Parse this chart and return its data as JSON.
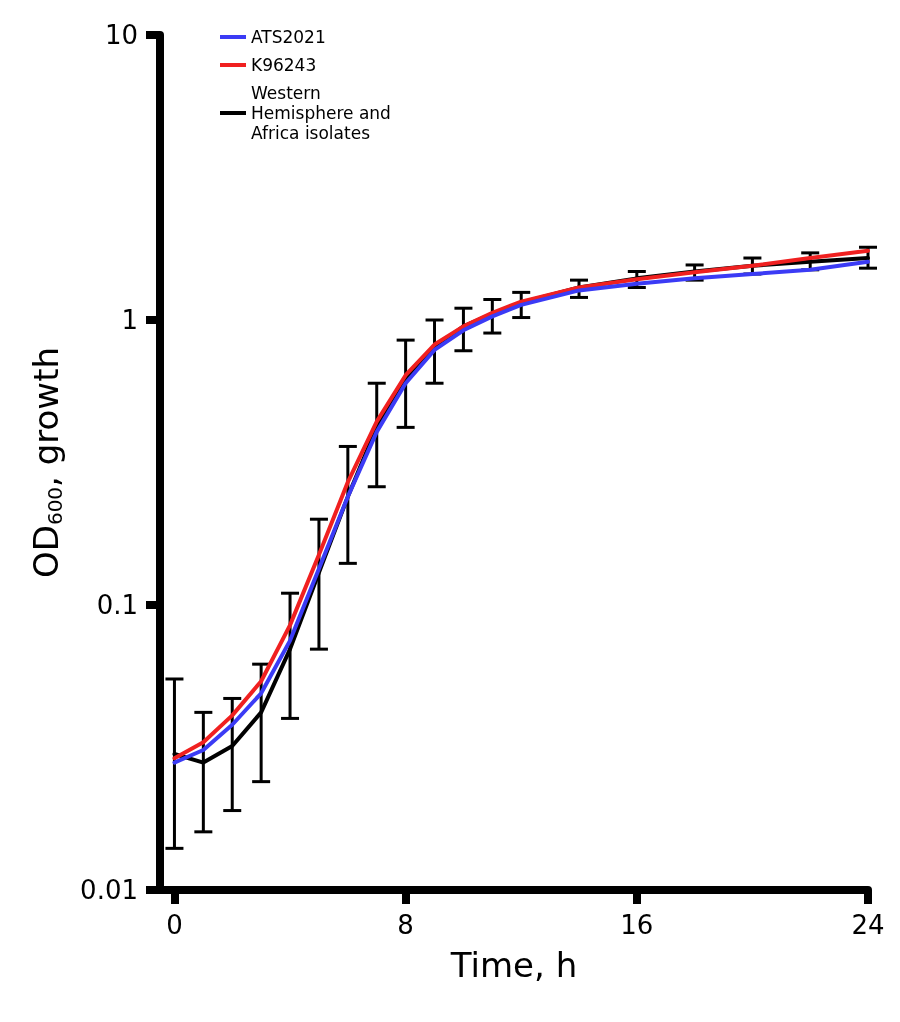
{
  "chart_data": {
    "type": "line",
    "xlabel": "Time, h",
    "ylabel": "OD$_{600}$, growth",
    "x": [
      0,
      1,
      2,
      3,
      4,
      5,
      6,
      7,
      8,
      9,
      10,
      11,
      12,
      14,
      16,
      18,
      20,
      22,
      24
    ],
    "series": [
      {
        "name": "ATS2021",
        "color": "#3b3bf5",
        "values": [
          0.028,
          0.031,
          0.038,
          0.049,
          0.075,
          0.134,
          0.24,
          0.405,
          0.6,
          0.785,
          0.92,
          1.03,
          1.13,
          1.27,
          1.34,
          1.4,
          1.45,
          1.5,
          1.6
        ]
      },
      {
        "name": "K96243",
        "color": "#f02020",
        "values": [
          0.029,
          0.033,
          0.041,
          0.054,
          0.085,
          0.15,
          0.27,
          0.44,
          0.64,
          0.82,
          0.95,
          1.06,
          1.16,
          1.3,
          1.39,
          1.47,
          1.55,
          1.65,
          1.75
        ]
      },
      {
        "name": "Western Hemisphere and Africa isolates",
        "color": "#000000",
        "values": [
          0.03,
          0.028,
          0.032,
          0.042,
          0.07,
          0.13,
          0.24,
          0.42,
          0.62,
          0.8,
          0.95,
          1.05,
          1.15,
          1.3,
          1.4,
          1.48,
          1.55,
          1.6,
          1.65
        ],
        "errors": [
          [
            0.014,
            0.055
          ],
          [
            0.016,
            0.042
          ],
          [
            0.019,
            0.047
          ],
          [
            0.024,
            0.062
          ],
          [
            0.04,
            0.11
          ],
          [
            0.07,
            0.2
          ],
          [
            0.14,
            0.36
          ],
          [
            0.26,
            0.6
          ],
          [
            0.42,
            0.85
          ],
          [
            0.6,
            1.0
          ],
          [
            0.78,
            1.1
          ],
          [
            0.9,
            1.18
          ],
          [
            1.02,
            1.25
          ],
          [
            1.2,
            1.38
          ],
          [
            1.3,
            1.48
          ],
          [
            1.38,
            1.56
          ],
          [
            1.45,
            1.65
          ],
          [
            1.5,
            1.72
          ],
          [
            1.52,
            1.8
          ]
        ]
      }
    ],
    "xlim": [
      -0.5,
      24
    ],
    "xticks": [
      0,
      8,
      16,
      24
    ],
    "ylim": [
      0.01,
      10
    ],
    "yticks": [
      0.01,
      0.1,
      1,
      10
    ],
    "log": "y",
    "grid": false,
    "legend": "top left",
    "marker": "none",
    "line_style": "solid"
  }
}
